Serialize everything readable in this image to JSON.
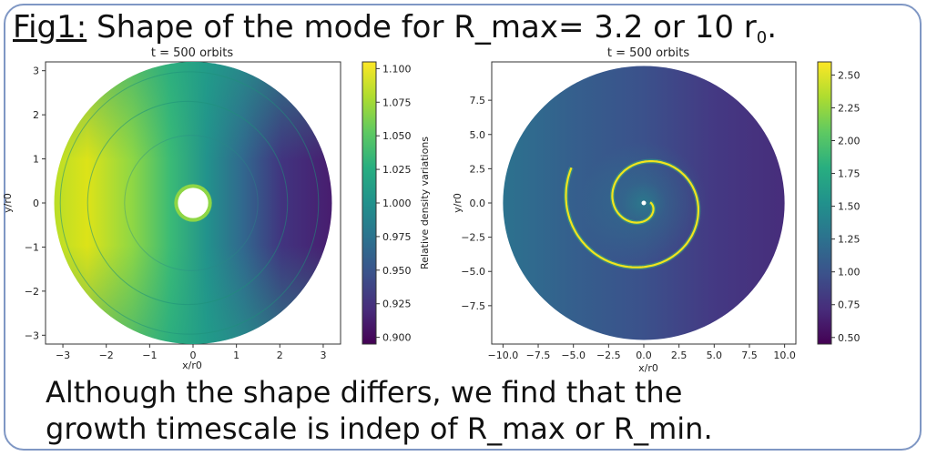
{
  "slide": {
    "title_label": "Fig1:",
    "title_text": " Shape of the mode for R_max= 3.2 or 10 r",
    "title_sub": "0",
    "title_end": ".",
    "caption_line1": "Although the shape differs, we find that the",
    "caption_line2": "growth timescale is indep of R_max or R_min."
  },
  "chart_data": [
    {
      "type": "heatmap",
      "title": "t = 500 orbits",
      "xlabel": "x/r0",
      "ylabel": "y/r0",
      "xlim": [
        -3.4,
        3.4
      ],
      "ylim": [
        -3.2,
        3.2
      ],
      "xticks": [
        -3,
        -2,
        -1,
        0,
        1,
        2,
        3
      ],
      "yticks": [
        -3,
        -2,
        -1,
        0,
        1,
        2,
        3
      ],
      "disk": {
        "r_min": 0.35,
        "r_max": 3.2
      },
      "colorbar": {
        "label": "Relative density variations",
        "range": [
          0.895,
          1.105
        ],
        "ticks": [
          0.9,
          0.925,
          0.95,
          0.975,
          1.0,
          1.025,
          1.05,
          1.075,
          1.1
        ],
        "colormap": "viridis"
      }
    },
    {
      "type": "heatmap",
      "title": "t = 500 orbits",
      "xlabel": "x/r0",
      "ylabel": "y/r0",
      "xlim": [
        -10.8,
        10.8
      ],
      "ylim": [
        -10.3,
        10.3
      ],
      "xticks": [
        -10.0,
        -7.5,
        -5.0,
        -2.5,
        0.0,
        2.5,
        5.0,
        7.5,
        10.0
      ],
      "yticks": [
        -7.5,
        -5.0,
        -2.5,
        0.0,
        2.5,
        5.0,
        7.5
      ],
      "disk": {
        "r_min": 0.15,
        "r_max": 10
      },
      "colorbar": {
        "label": "",
        "range": [
          0.45,
          2.6
        ],
        "ticks": [
          0.5,
          0.75,
          1.0,
          1.25,
          1.5,
          1.75,
          2.0,
          2.25,
          2.5
        ],
        "colormap": "viridis"
      }
    }
  ]
}
